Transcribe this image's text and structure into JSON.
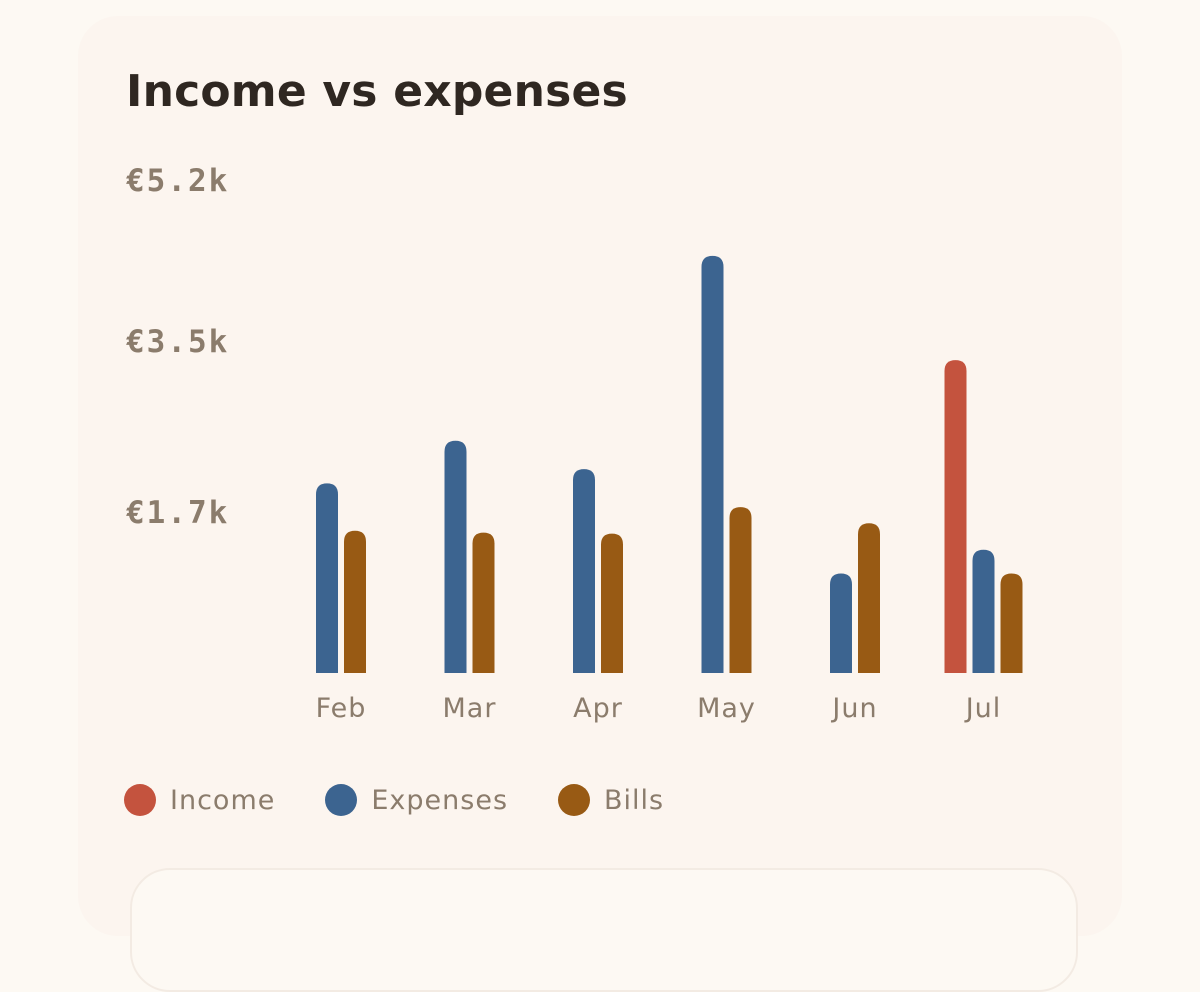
{
  "card": {
    "title": "Income vs expenses"
  },
  "colors": {
    "income": "#c4533e",
    "expenses": "#3c6490",
    "bills": "#985a14"
  },
  "legend": [
    {
      "label": "Income",
      "color": "#c4533e"
    },
    {
      "label": "Expenses",
      "color": "#3c6490"
    },
    {
      "label": "Bills",
      "color": "#985a14"
    }
  ],
  "chart_data": {
    "type": "bar",
    "title": "Income vs expenses",
    "categories": [
      "Feb",
      "Mar",
      "Apr",
      "May",
      "Jun",
      "Jul"
    ],
    "yticks": [
      {
        "value": 1.7,
        "label": "€1.7k"
      },
      {
        "value": 3.5,
        "label": "€3.5k"
      },
      {
        "value": 5.2,
        "label": "€5.2k"
      }
    ],
    "ylim": [
      0,
      5.2
    ],
    "unit": "k€",
    "grid": false,
    "legend_position": "bottom",
    "series": [
      {
        "name": "Income",
        "color": "#c4533e",
        "values": [
          null,
          null,
          null,
          null,
          null,
          3.3
        ]
      },
      {
        "name": "Expenses",
        "color": "#3c6490",
        "values": [
          2.0,
          2.45,
          2.15,
          4.4,
          1.05,
          1.3
        ]
      },
      {
        "name": "Bills",
        "color": "#985a14",
        "values": [
          1.5,
          1.48,
          1.47,
          1.75,
          1.58,
          1.05
        ]
      }
    ]
  }
}
